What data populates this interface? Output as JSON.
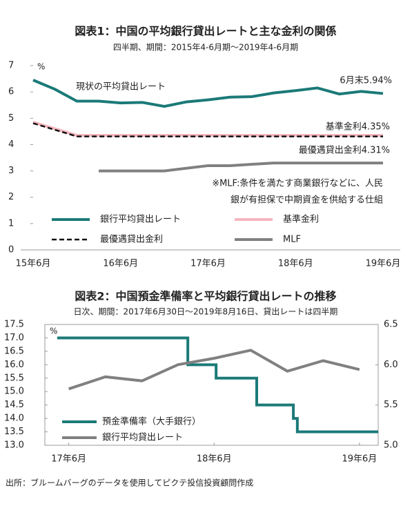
{
  "chart_data": [
    {
      "type": "line",
      "title": "図表1：中国の平均銀行貸出レートと主な金利の関係",
      "subtitle": "四半期、期間：2015年4-6月期～2019年4-6月期",
      "y_unit": "%",
      "categories": [
        "15年6月",
        null,
        null,
        null,
        "16年6月",
        null,
        null,
        null,
        "17年6月",
        null,
        null,
        null,
        "18年6月",
        null,
        null,
        null,
        "19年6月"
      ],
      "ylim": [
        0,
        7
      ],
      "yticks": [
        0,
        1,
        2,
        3,
        4,
        5,
        6,
        7
      ],
      "series": [
        {
          "name": "銀行平均貸出レート",
          "color": "#1b7a78",
          "style": "solid",
          "width": 4,
          "values": [
            6.45,
            6.1,
            5.65,
            5.65,
            5.58,
            5.6,
            5.45,
            5.62,
            5.7,
            5.8,
            5.82,
            5.96,
            6.05,
            6.15,
            5.92,
            6.02,
            5.94
          ]
        },
        {
          "name": "基準金利",
          "color": "#f5b5bf",
          "style": "solid",
          "width": 4,
          "values": [
            4.85,
            4.6,
            4.35,
            4.35,
            4.35,
            4.35,
            4.35,
            4.35,
            4.35,
            4.35,
            4.35,
            4.35,
            4.35,
            4.35,
            4.35,
            4.35,
            4.35
          ]
        },
        {
          "name": "最優遇貸出金利",
          "color": "#111111",
          "style": "dashed",
          "width": 2.5,
          "values": [
            4.81,
            4.56,
            4.31,
            4.31,
            4.31,
            4.31,
            4.31,
            4.31,
            4.31,
            4.31,
            4.31,
            4.31,
            4.31,
            4.31,
            4.31,
            4.31,
            4.31
          ]
        },
        {
          "name": "MLF",
          "color": "#808080",
          "style": "solid",
          "width": 4,
          "values": [
            null,
            null,
            null,
            3.0,
            3.0,
            3.0,
            3.0,
            3.1,
            3.2,
            3.2,
            3.25,
            3.3,
            3.3,
            3.3,
            3.3,
            3.3,
            3.3
          ]
        }
      ],
      "annotations": [
        "現状の平均貸出レート",
        "6月末5.94%",
        "基準金利4.35%",
        "最優遇貸出金利4.31%",
        "※MLF:条件を満たす商業銀行などに、人民",
        "銀が有担保で中期資金を供給する仕組"
      ]
    },
    {
      "type": "line",
      "title": "図表2：中国預金準備率と平均銀行貸出レートの推移",
      "subtitle": "日次、期間：2017年6月30日～2019年8月16日、貸出レートは四半期",
      "y_unit": "%",
      "xlim": [
        "2017-05-01",
        "2019-08-16"
      ],
      "xticks": [
        {
          "value": "2017-06-30",
          "label": "17年6月"
        },
        {
          "value": "2018-06-30",
          "label": "18年6月"
        },
        {
          "value": "2019-06-30",
          "label": "19年6月"
        }
      ],
      "ylim": [
        13.0,
        17.5
      ],
      "yticks": [
        {
          "value": 13,
          "label": "13.0"
        },
        13.5,
        {
          "value": 14,
          "label": "14.0"
        },
        14.5,
        {
          "value": 15,
          "label": "15.0"
        },
        15.5,
        {
          "value": 16,
          "label": "16.0"
        },
        16.5,
        {
          "value": 17,
          "label": "17.0"
        },
        17.5
      ],
      "y2lim": [
        5.0,
        6.5
      ],
      "y2ticks": [
        {
          "value": 5,
          "label": "5.0"
        },
        5.5,
        {
          "value": 6,
          "label": "6.0"
        },
        6.5
      ],
      "series": [
        {
          "name": "預金準備率（大手銀行）",
          "color": "#1b7a78",
          "step": true,
          "x": [
            "2017-06-01",
            "2018-04-25",
            "2018-07-05",
            "2018-10-15",
            "2019-01-15",
            "2019-01-25",
            "2019-08-16"
          ],
          "values": [
            17.0,
            16.0,
            15.5,
            14.5,
            14.0,
            13.5,
            13.5
          ]
        },
        {
          "name": "銀行平均貸出レート",
          "color": "#808080",
          "axis": "y2",
          "x": [
            "2017-06-30",
            "2017-09-30",
            "2017-12-31",
            "2018-03-31",
            "2018-06-30",
            "2018-09-30",
            "2018-12-31",
            "2019-03-31",
            "2019-06-30"
          ],
          "values": [
            5.7,
            5.85,
            5.8,
            6.0,
            6.08,
            6.18,
            5.92,
            6.05,
            5.94
          ]
        }
      ]
    }
  ],
  "source": "出所：ブルームバーグのデータを使用してピクテ投信投資顧問作成"
}
